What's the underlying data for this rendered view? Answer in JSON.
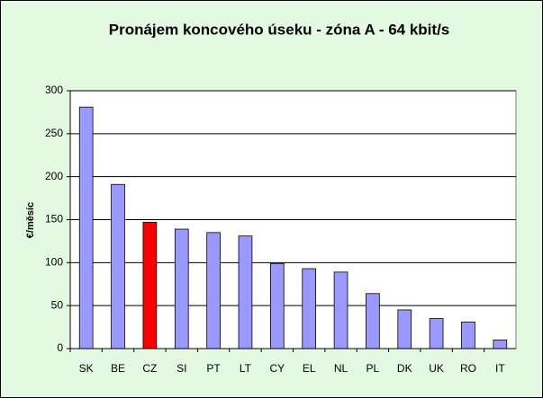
{
  "chart_data": {
    "type": "bar",
    "title": "Pronájem koncového úseku - zóna A - 64 kbit/s",
    "y_label": "€/měsíc",
    "categories": [
      "SK",
      "BE",
      "CZ",
      "SI",
      "PT",
      "LT",
      "CY",
      "EL",
      "NL",
      "PL",
      "DK",
      "UK",
      "RO",
      "IT"
    ],
    "values": [
      281,
      191,
      147,
      139,
      135,
      131,
      99,
      93,
      89,
      64,
      45,
      35,
      31,
      10
    ],
    "colors": [
      "#9999ff",
      "#9999ff",
      "#ff0000",
      "#9999ff",
      "#9999ff",
      "#9999ff",
      "#9999ff",
      "#9999ff",
      "#9999ff",
      "#9999ff",
      "#9999ff",
      "#9999ff",
      "#9999ff",
      "#9999ff"
    ],
    "ylim": [
      0,
      300
    ],
    "yticks": [
      0,
      50,
      100,
      150,
      200,
      250,
      300
    ],
    "grid": true
  }
}
